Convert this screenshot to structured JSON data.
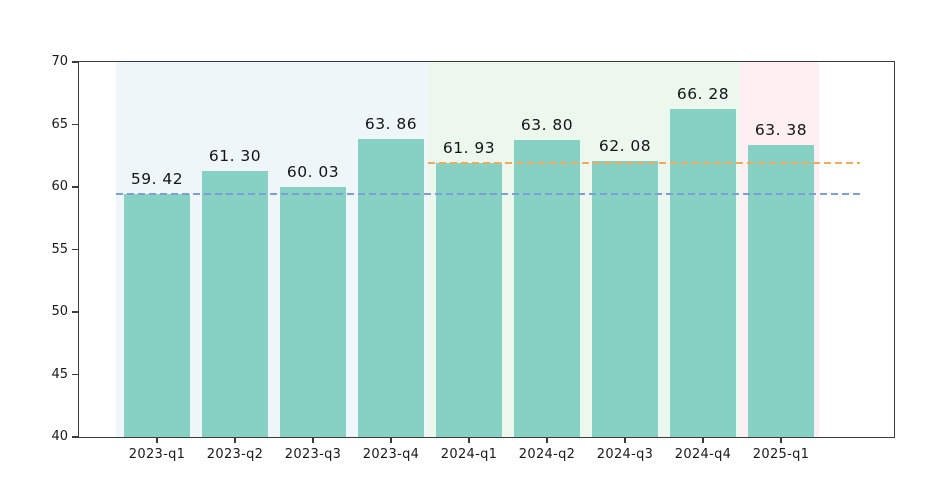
{
  "chart_data": {
    "type": "bar",
    "title": "",
    "xlabel": "",
    "ylabel": "",
    "categories": [
      "2023-q1",
      "2023-q2",
      "2023-q3",
      "2023-q4",
      "2024-q1",
      "2024-q2",
      "2024-q3",
      "2024-q4",
      "2025-q1"
    ],
    "values": [
      59.42,
      61.3,
      60.03,
      63.86,
      61.93,
      63.8,
      62.08,
      66.28,
      63.38
    ],
    "bar_labels": [
      "59. 42",
      "61. 30",
      "60. 03",
      "63. 86",
      "61. 93",
      "63. 80",
      "62. 08",
      "66. 28",
      "63. 38"
    ],
    "ylim": [
      40,
      70
    ],
    "y_ticks": [
      40,
      45,
      50,
      55,
      60,
      65,
      70
    ],
    "grid": false,
    "legend": "none",
    "bar_color": "#87d0c4",
    "background_bands": [
      {
        "name": "year-2023-band",
        "from_category": "2023-q1",
        "to_category": "2023-q4",
        "color": "#eef6f9"
      },
      {
        "name": "year-2024-band",
        "from_category": "2024-q1",
        "to_category": "2024-q4",
        "color": "#ecf7ee"
      },
      {
        "name": "year-2025-band",
        "from_category": "2025-q1",
        "to_category": "2025-q1",
        "color": "#fdeff2"
      }
    ],
    "reference_lines": [
      {
        "name": "reference-line-2023-q1",
        "value": 59.42,
        "color": "#7d9fd3",
        "style": "dashed",
        "starts_at_category": "2023-q1"
      },
      {
        "name": "reference-line-2024-q1",
        "value": 61.93,
        "color": "#f0aa5e",
        "style": "dashed",
        "starts_at_category": "2024-q1"
      }
    ]
  }
}
